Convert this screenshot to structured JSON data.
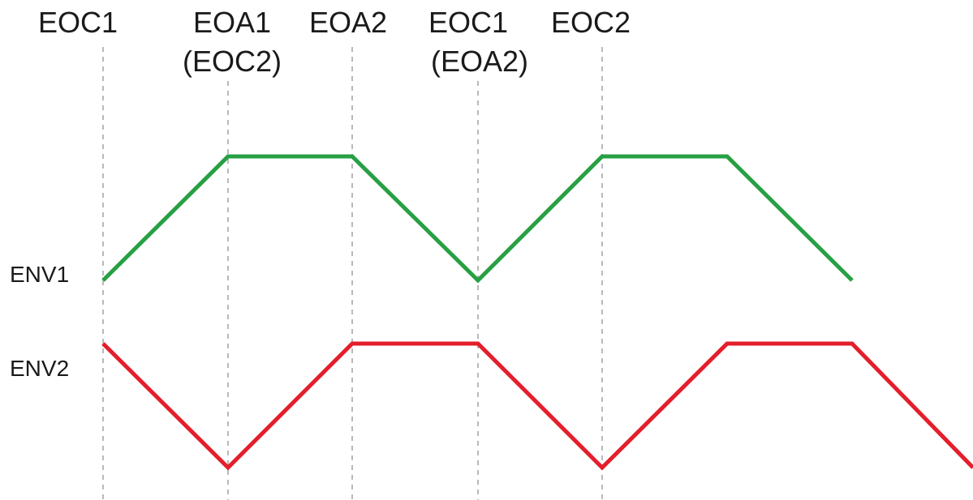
{
  "markers": [
    {
      "line1": "EOC1",
      "line2": ""
    },
    {
      "line1": "EOA1",
      "line2": "(EOC2)"
    },
    {
      "line1": "EOA2",
      "line2": ""
    },
    {
      "line1": "EOC1",
      "line2": "(EOA2)"
    },
    {
      "line1": "EOC2",
      "line2": ""
    }
  ],
  "envelopes": [
    {
      "label": "ENV1",
      "color": "#27a043",
      "levels": [
        0,
        1,
        1,
        0,
        1,
        1,
        0
      ],
      "segment_count_after_markers": 2
    },
    {
      "label": "ENV2",
      "color": "#e41e2b",
      "levels": [
        1,
        0,
        1,
        1,
        0,
        1,
        1,
        0
      ],
      "segment_count_after_markers": 3
    }
  ]
}
